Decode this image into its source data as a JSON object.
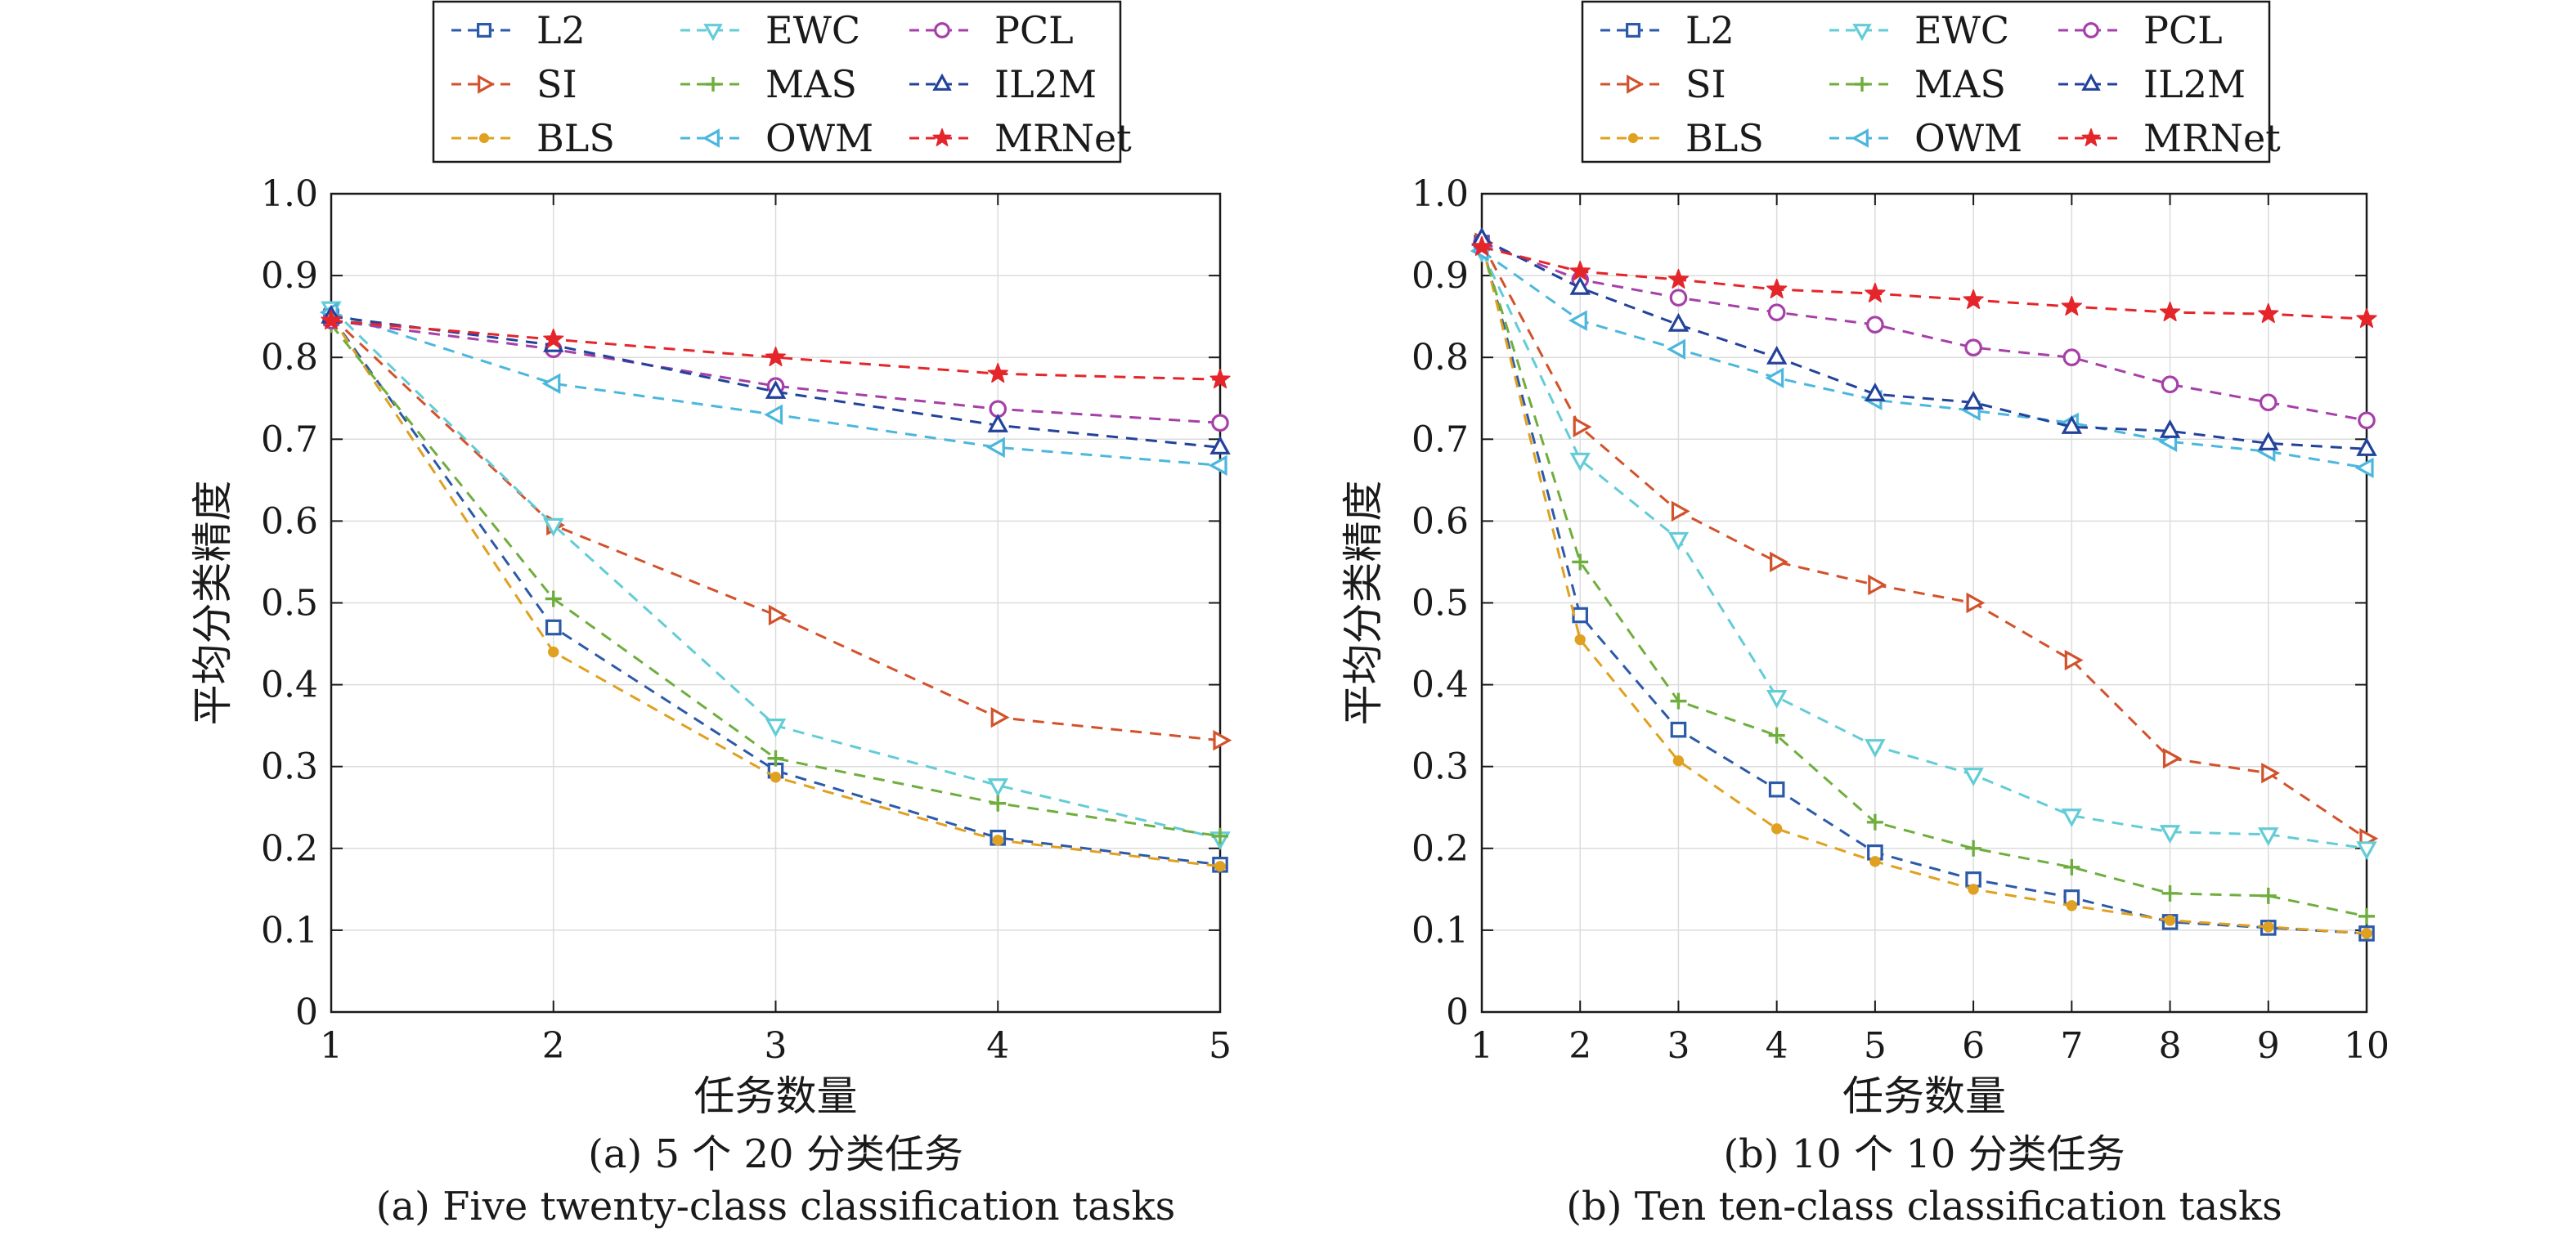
{
  "chart_data": [
    {
      "type": "line",
      "caption_zh": "(a) 5 个 20 分类任务",
      "caption_en": "(a) Five twenty-class classification tasks",
      "xlabel": "任务数量",
      "ylabel": "平均分类精度",
      "x": [
        1,
        2,
        3,
        4,
        5
      ],
      "xlim": [
        1,
        5
      ],
      "ylim": [
        0,
        1
      ],
      "xticks": [
        "1",
        "2",
        "3",
        "4",
        "5"
      ],
      "yticks": [
        "0",
        "0.1",
        "0.2",
        "0.3",
        "0.4",
        "0.5",
        "0.6",
        "0.7",
        "0.8",
        "0.9",
        "1.0"
      ],
      "grid": true,
      "legend_position": "top, outside",
      "series": [
        {
          "name": "L2",
          "values": [
            0.85,
            0.47,
            0.295,
            0.213,
            0.18
          ]
        },
        {
          "name": "SI",
          "values": [
            0.85,
            0.595,
            0.485,
            0.36,
            0.332
          ]
        },
        {
          "name": "BLS",
          "values": [
            0.85,
            0.44,
            0.287,
            0.21,
            0.178
          ]
        },
        {
          "name": "EWC",
          "values": [
            0.86,
            0.595,
            0.35,
            0.277,
            0.212
          ]
        },
        {
          "name": "MAS",
          "values": [
            0.84,
            0.505,
            0.31,
            0.255,
            0.215
          ]
        },
        {
          "name": "OWM",
          "values": [
            0.855,
            0.768,
            0.73,
            0.69,
            0.668
          ]
        },
        {
          "name": "PCL",
          "values": [
            0.845,
            0.81,
            0.765,
            0.737,
            0.72
          ]
        },
        {
          "name": "IL2M",
          "values": [
            0.85,
            0.815,
            0.758,
            0.717,
            0.69
          ]
        },
        {
          "name": "MRNet",
          "values": [
            0.845,
            0.822,
            0.8,
            0.78,
            0.773
          ]
        }
      ]
    },
    {
      "type": "line",
      "caption_zh": "(b) 10 个 10 分类任务",
      "caption_en": "(b) Ten ten-class classification tasks",
      "xlabel": "任务数量",
      "ylabel": "平均分类精度",
      "x": [
        1,
        2,
        3,
        4,
        5,
        6,
        7,
        8,
        9,
        10
      ],
      "xlim": [
        1,
        10
      ],
      "ylim": [
        0,
        1
      ],
      "xticks": [
        "1",
        "2",
        "3",
        "4",
        "5",
        "6",
        "7",
        "8",
        "9",
        "10"
      ],
      "yticks": [
        "0",
        "0.1",
        "0.2",
        "0.3",
        "0.4",
        "0.5",
        "0.6",
        "0.7",
        "0.8",
        "0.9",
        "1.0"
      ],
      "grid": true,
      "legend_position": "top, outside",
      "series": [
        {
          "name": "L2",
          "values": [
            0.94,
            0.485,
            0.345,
            0.272,
            0.195,
            0.162,
            0.14,
            0.11,
            0.103,
            0.096
          ]
        },
        {
          "name": "SI",
          "values": [
            0.94,
            0.715,
            0.612,
            0.55,
            0.522,
            0.5,
            0.43,
            0.31,
            0.292,
            0.212
          ]
        },
        {
          "name": "BLS",
          "values": [
            0.94,
            0.455,
            0.307,
            0.224,
            0.184,
            0.15,
            0.13,
            0.112,
            0.104,
            0.096
          ]
        },
        {
          "name": "EWC",
          "values": [
            0.93,
            0.675,
            0.578,
            0.385,
            0.325,
            0.29,
            0.24,
            0.22,
            0.217,
            0.2
          ]
        },
        {
          "name": "MAS",
          "values": [
            0.935,
            0.55,
            0.38,
            0.338,
            0.232,
            0.2,
            0.177,
            0.145,
            0.142,
            0.117
          ]
        },
        {
          "name": "OWM",
          "values": [
            0.93,
            0.845,
            0.81,
            0.775,
            0.748,
            0.735,
            0.72,
            0.697,
            0.685,
            0.665
          ]
        },
        {
          "name": "PCL",
          "values": [
            0.94,
            0.895,
            0.873,
            0.855,
            0.84,
            0.812,
            0.8,
            0.767,
            0.745,
            0.723
          ]
        },
        {
          "name": "IL2M",
          "values": [
            0.945,
            0.885,
            0.84,
            0.8,
            0.755,
            0.745,
            0.715,
            0.71,
            0.695,
            0.688
          ]
        },
        {
          "name": "MRNet",
          "values": [
            0.935,
            0.905,
            0.895,
            0.883,
            0.878,
            0.87,
            0.862,
            0.855,
            0.853,
            0.847
          ]
        }
      ]
    }
  ],
  "styles": {
    "L2": {
      "color": "#2c5aa8",
      "marker": "square-open"
    },
    "SI": {
      "color": "#d2522b",
      "marker": "triangle-right-open"
    },
    "BLS": {
      "color": "#e0a020",
      "marker": "dot-filled"
    },
    "EWC": {
      "color": "#63ccd6",
      "marker": "triangle-down-open"
    },
    "MAS": {
      "color": "#6fae3e",
      "marker": "plus"
    },
    "OWM": {
      "color": "#4cb7dd",
      "marker": "triangle-left-open"
    },
    "PCL": {
      "color": "#a640a8",
      "marker": "circle-open"
    },
    "IL2M": {
      "color": "#23429a",
      "marker": "triangle-up-open"
    },
    "MRNet": {
      "color": "#e4262b",
      "marker": "star-filled"
    }
  },
  "legend_order": [
    "L2",
    "SI",
    "BLS",
    "EWC",
    "MAS",
    "OWM",
    "PCL",
    "IL2M",
    "MRNet"
  ]
}
